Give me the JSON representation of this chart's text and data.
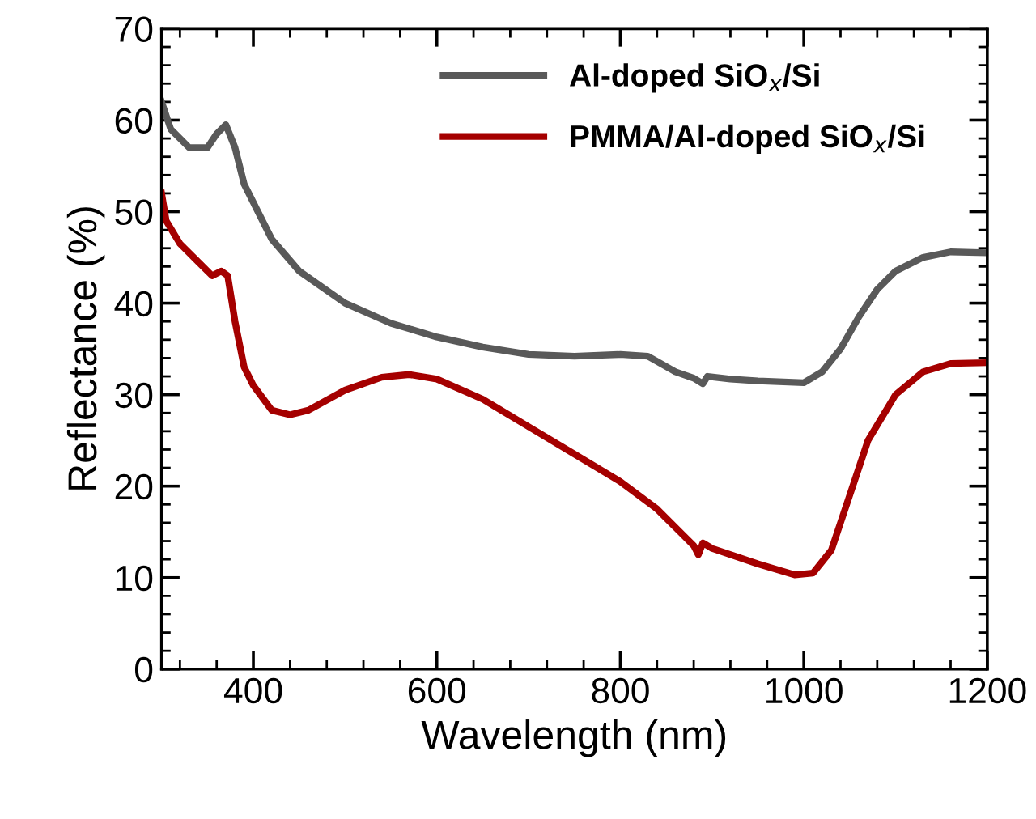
{
  "chart_data": {
    "type": "line",
    "xlabel": "Wavelength (nm)",
    "ylabel": "Reflectance (%)",
    "xlim": [
      300,
      1200
    ],
    "ylim": [
      0,
      70
    ],
    "xticks": [
      400,
      600,
      800,
      1000,
      1200
    ],
    "yticks": [
      0,
      10,
      20,
      30,
      40,
      50,
      60,
      70
    ],
    "grid": false,
    "legend": "top right",
    "marker": "none",
    "line_style": "solid",
    "series": [
      {
        "name": "Al-doped SiO$_{x}$/Si",
        "color": "#595959",
        "x": [
          300,
          310,
          330,
          350,
          360,
          370,
          380,
          390,
          400,
          420,
          450,
          500,
          550,
          600,
          650,
          700,
          750,
          800,
          830,
          860,
          880,
          890,
          895,
          920,
          950,
          1000,
          1020,
          1040,
          1060,
          1080,
          1100,
          1130,
          1160,
          1200
        ],
        "values": [
          62,
          59,
          57,
          57,
          58.5,
          59.5,
          57,
          53,
          51,
          47,
          43.5,
          40,
          37.8,
          36.3,
          35.2,
          34.4,
          34.2,
          34.4,
          34.2,
          32.5,
          31.8,
          31.2,
          32,
          31.7,
          31.5,
          31.3,
          32.5,
          35,
          38.5,
          41.5,
          43.5,
          45,
          45.6,
          45.5
        ]
      },
      {
        "name": "PMMA/Al-doped SiO$_{x}$/Si",
        "color": "#a50000",
        "x": [
          300,
          305,
          320,
          340,
          355,
          365,
          372,
          380,
          390,
          400,
          420,
          440,
          460,
          500,
          540,
          570,
          600,
          650,
          700,
          750,
          800,
          840,
          870,
          880,
          885,
          890,
          900,
          950,
          990,
          1010,
          1030,
          1050,
          1070,
          1100,
          1130,
          1160,
          1200
        ],
        "values": [
          52,
          49,
          46.5,
          44.5,
          43,
          43.5,
          43,
          38,
          33,
          31,
          28.3,
          27.8,
          28.3,
          30.5,
          31.9,
          32.2,
          31.7,
          29.5,
          26.5,
          23.5,
          20.5,
          17.5,
          14.5,
          13.5,
          12.5,
          13.8,
          13.2,
          11.5,
          10.3,
          10.5,
          13,
          19,
          25,
          30,
          32.5,
          33.4,
          33.5
        ]
      }
    ]
  }
}
